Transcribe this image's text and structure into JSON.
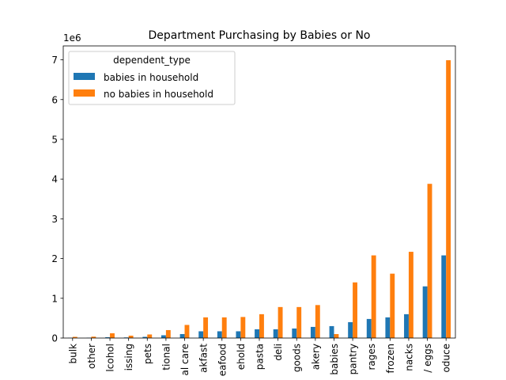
{
  "chart_data": {
    "type": "bar",
    "title": "Department Purchasing by Babies or No",
    "xlabel": "",
    "ylabel": "",
    "y_offset_label": "1e6",
    "y_scale": 1000000,
    "ylim": [
      0,
      7.35
    ],
    "yticks": [
      0,
      1,
      2,
      3,
      4,
      5,
      6,
      7
    ],
    "grid": false,
    "legend": {
      "title": "dependent_type",
      "placement": "top-left"
    },
    "categories": [
      "bulk",
      "other",
      "alcohol",
      "missing",
      "pets",
      "international",
      "personal care",
      "breakfast",
      "meat seafood",
      "household",
      "dry goods pasta",
      "deli",
      "canned goods",
      "bakery",
      "babies",
      "pantry",
      "beverages",
      "frozen",
      "snacks",
      "dairy eggs",
      "produce"
    ],
    "category_labels_visible": [
      "bulk",
      "other",
      "lcohol",
      "issing",
      "pets",
      "tional",
      "al care",
      "akfast",
      "eafood",
      "ehold",
      "pasta",
      "deli",
      "goods",
      "akery",
      "babies",
      "pantry",
      "rages",
      "frozen",
      "nacks",
      "/ eggs",
      "oduce"
    ],
    "series": [
      {
        "name": "babies in household",
        "color": "#1f77b4",
        "values": [
          0.005,
          0.008,
          0.02,
          0.015,
          0.03,
          0.07,
          0.1,
          0.17,
          0.17,
          0.17,
          0.22,
          0.22,
          0.24,
          0.28,
          0.3,
          0.4,
          0.48,
          0.52,
          0.6,
          1.3,
          2.08
        ]
      },
      {
        "name": "no babies in household",
        "color": "#ff7f0e",
        "values": [
          0.03,
          0.035,
          0.12,
          0.06,
          0.09,
          0.2,
          0.33,
          0.52,
          0.52,
          0.53,
          0.6,
          0.78,
          0.78,
          0.83,
          0.1,
          1.4,
          2.08,
          1.62,
          2.17,
          3.88,
          6.99
        ]
      }
    ]
  }
}
